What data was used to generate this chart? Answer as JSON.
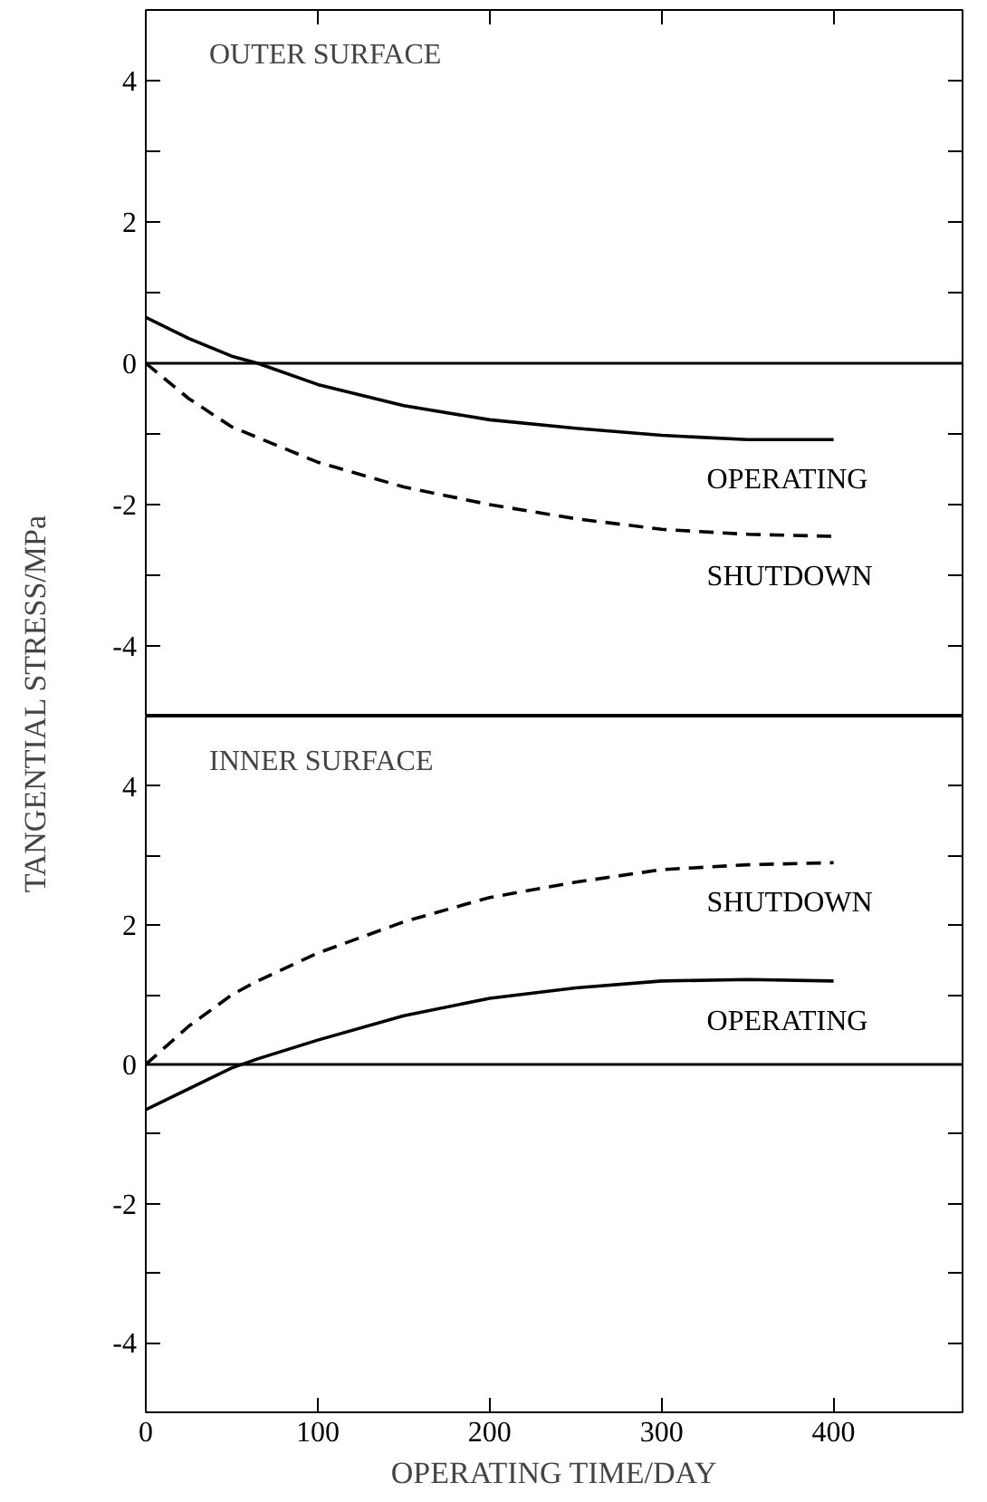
{
  "chart_data": [
    {
      "type": "line",
      "annotations": [
        "OUTER SURFACE"
      ],
      "xlim": [
        0,
        475
      ],
      "xticks": [
        {
          "value": 100,
          "label": null
        },
        {
          "value": 200,
          "label": null
        },
        {
          "value": 300,
          "label": null
        },
        {
          "value": 400,
          "label": null
        }
      ],
      "ylim": [
        -5,
        5
      ],
      "yticks": [
        -4,
        {
          "value": -3,
          "label": null
        },
        -2,
        {
          "value": -1,
          "label": null
        },
        0,
        {
          "value": 1,
          "label": null
        },
        2,
        {
          "value": 3,
          "label": null
        },
        4
      ],
      "tick_labels": "y",
      "grid": false,
      "ref_lines": [
        {
          "axis": "y",
          "value": 0,
          "color": "#000000"
        }
      ],
      "x": [
        0,
        25,
        50,
        65,
        100,
        150,
        200,
        250,
        300,
        350,
        400
      ],
      "series": [
        {
          "name": "OPERATING",
          "color": "#000000",
          "line_style": "solid",
          "values": [
            0.65,
            0.35,
            0.1,
            0,
            -0.3,
            -0.6,
            -0.8,
            -0.92,
            -1.02,
            -1.08,
            -1.08
          ]
        },
        {
          "name": "SHUTDOWN",
          "color": "#000000",
          "line_style": "dashed",
          "values": [
            0,
            -0.5,
            -0.9,
            -1.05,
            -1.4,
            -1.75,
            -2.0,
            -2.2,
            -2.35,
            -2.42,
            -2.45
          ]
        }
      ]
    },
    {
      "type": "line",
      "annotations": [
        "INNER SURFACE"
      ],
      "xlabel": "OPERATING TIME/DAY",
      "ylabel": "TANGENTIAL STRESS/MPa",
      "xlim": [
        0,
        475
      ],
      "xticks": [
        0,
        100,
        200,
        300,
        400
      ],
      "ylim": [
        -5,
        5
      ],
      "yticks": [
        -4,
        {
          "value": -3,
          "label": null
        },
        -2,
        {
          "value": -1,
          "label": null
        },
        0,
        {
          "value": 1,
          "label": null
        },
        2,
        {
          "value": 3,
          "label": null
        },
        4
      ],
      "grid": false,
      "ref_lines": [
        {
          "axis": "y",
          "value": 0,
          "color": "#000000"
        }
      ],
      "x": [
        0,
        25,
        50,
        65,
        100,
        150,
        200,
        250,
        300,
        350,
        400
      ],
      "series": [
        {
          "name": "SHUTDOWN",
          "color": "#000000",
          "line_style": "dashed",
          "values": [
            0,
            0.55,
            1.0,
            1.2,
            1.6,
            2.05,
            2.4,
            2.62,
            2.8,
            2.87,
            2.9
          ]
        },
        {
          "name": "OPERATING",
          "color": "#000000",
          "line_style": "solid",
          "values": [
            -0.65,
            -0.35,
            -0.05,
            0.08,
            0.35,
            0.7,
            0.95,
            1.1,
            1.2,
            1.22,
            1.2
          ]
        }
      ]
    }
  ]
}
